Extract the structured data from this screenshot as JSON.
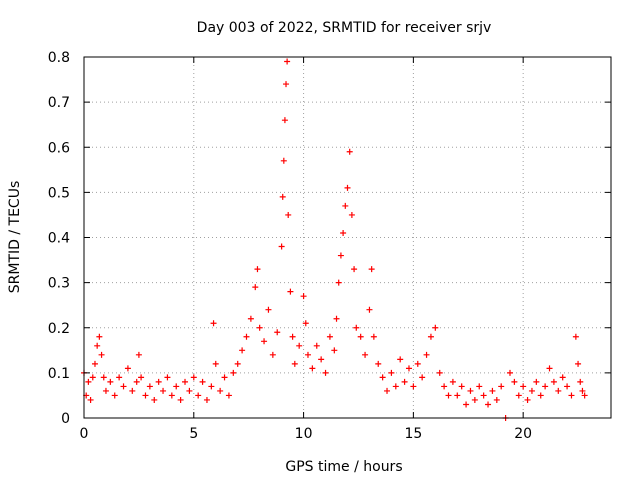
{
  "chart_data": {
    "type": "scatter",
    "title": "Day 003 of 2022, SRMTID for receiver srjv",
    "xlabel": "GPS time / hours",
    "ylabel": "SRMTID / TECUs",
    "xlim": [
      0,
      24
    ],
    "ylim": [
      0,
      0.8
    ],
    "x_ticks": [
      0,
      5,
      10,
      15,
      20
    ],
    "x_tick_labels": [
      "0",
      "5",
      "10",
      "15",
      "20"
    ],
    "y_ticks": [
      0,
      0.1,
      0.2,
      0.3,
      0.4,
      0.5,
      0.6,
      0.7,
      0.8
    ],
    "y_tick_labels": [
      "0",
      "0.1",
      "0.2",
      "0.3",
      "0.4",
      "0.5",
      "0.6",
      "0.7",
      "0.8"
    ],
    "grid": true,
    "marker": "+",
    "series": [
      {
        "name": "srjv",
        "color": "#ff0000",
        "points": [
          [
            0.0,
            0.1
          ],
          [
            0.1,
            0.05
          ],
          [
            0.2,
            0.08
          ],
          [
            0.3,
            0.04
          ],
          [
            0.4,
            0.09
          ],
          [
            0.5,
            0.12
          ],
          [
            0.6,
            0.16
          ],
          [
            0.7,
            0.18
          ],
          [
            0.8,
            0.14
          ],
          [
            0.9,
            0.09
          ],
          [
            1.0,
            0.06
          ],
          [
            1.2,
            0.08
          ],
          [
            1.4,
            0.05
          ],
          [
            1.6,
            0.09
          ],
          [
            1.8,
            0.07
          ],
          [
            2.0,
            0.11
          ],
          [
            2.2,
            0.06
          ],
          [
            2.4,
            0.08
          ],
          [
            2.5,
            0.14
          ],
          [
            2.6,
            0.09
          ],
          [
            2.8,
            0.05
          ],
          [
            3.0,
            0.07
          ],
          [
            3.2,
            0.04
          ],
          [
            3.4,
            0.08
          ],
          [
            3.6,
            0.06
          ],
          [
            3.8,
            0.09
          ],
          [
            4.0,
            0.05
          ],
          [
            4.2,
            0.07
          ],
          [
            4.4,
            0.04
          ],
          [
            4.6,
            0.08
          ],
          [
            4.8,
            0.06
          ],
          [
            5.0,
            0.09
          ],
          [
            5.2,
            0.05
          ],
          [
            5.4,
            0.08
          ],
          [
            5.6,
            0.04
          ],
          [
            5.8,
            0.07
          ],
          [
            5.9,
            0.21
          ],
          [
            6.0,
            0.12
          ],
          [
            6.2,
            0.06
          ],
          [
            6.4,
            0.09
          ],
          [
            6.6,
            0.05
          ],
          [
            6.8,
            0.1
          ],
          [
            7.0,
            0.12
          ],
          [
            7.2,
            0.15
          ],
          [
            7.4,
            0.18
          ],
          [
            7.6,
            0.22
          ],
          [
            7.8,
            0.29
          ],
          [
            7.9,
            0.33
          ],
          [
            8.0,
            0.2
          ],
          [
            8.2,
            0.17
          ],
          [
            8.4,
            0.24
          ],
          [
            8.6,
            0.14
          ],
          [
            8.8,
            0.19
          ],
          [
            9.0,
            0.38
          ],
          [
            9.05,
            0.49
          ],
          [
            9.1,
            0.57
          ],
          [
            9.15,
            0.66
          ],
          [
            9.2,
            0.74
          ],
          [
            9.25,
            0.79
          ],
          [
            9.3,
            0.45
          ],
          [
            9.4,
            0.28
          ],
          [
            9.5,
            0.18
          ],
          [
            9.6,
            0.12
          ],
          [
            9.8,
            0.16
          ],
          [
            10.0,
            0.27
          ],
          [
            10.1,
            0.21
          ],
          [
            10.2,
            0.14
          ],
          [
            10.4,
            0.11
          ],
          [
            10.6,
            0.16
          ],
          [
            10.8,
            0.13
          ],
          [
            11.0,
            0.1
          ],
          [
            11.2,
            0.18
          ],
          [
            11.4,
            0.15
          ],
          [
            11.5,
            0.22
          ],
          [
            11.6,
            0.3
          ],
          [
            11.7,
            0.36
          ],
          [
            11.8,
            0.41
          ],
          [
            11.9,
            0.47
          ],
          [
            12.0,
            0.51
          ],
          [
            12.1,
            0.59
          ],
          [
            12.2,
            0.45
          ],
          [
            12.3,
            0.33
          ],
          [
            12.4,
            0.2
          ],
          [
            12.6,
            0.18
          ],
          [
            12.8,
            0.14
          ],
          [
            13.0,
            0.24
          ],
          [
            13.1,
            0.33
          ],
          [
            13.2,
            0.18
          ],
          [
            13.4,
            0.12
          ],
          [
            13.6,
            0.09
          ],
          [
            13.8,
            0.06
          ],
          [
            14.0,
            0.1
          ],
          [
            14.2,
            0.07
          ],
          [
            14.4,
            0.13
          ],
          [
            14.6,
            0.08
          ],
          [
            14.8,
            0.11
          ],
          [
            15.0,
            0.07
          ],
          [
            15.2,
            0.12
          ],
          [
            15.4,
            0.09
          ],
          [
            15.6,
            0.14
          ],
          [
            15.8,
            0.18
          ],
          [
            16.0,
            0.2
          ],
          [
            16.2,
            0.1
          ],
          [
            16.4,
            0.07
          ],
          [
            16.6,
            0.05
          ],
          [
            16.8,
            0.08
          ],
          [
            17.0,
            0.05
          ],
          [
            17.2,
            0.07
          ],
          [
            17.4,
            0.03
          ],
          [
            17.6,
            0.06
          ],
          [
            17.8,
            0.04
          ],
          [
            18.0,
            0.07
          ],
          [
            18.2,
            0.05
          ],
          [
            18.4,
            0.03
          ],
          [
            18.6,
            0.06
          ],
          [
            18.8,
            0.04
          ],
          [
            19.0,
            0.07
          ],
          [
            19.2,
            0.0
          ],
          [
            19.4,
            0.1
          ],
          [
            19.6,
            0.08
          ],
          [
            19.8,
            0.05
          ],
          [
            20.0,
            0.07
          ],
          [
            20.2,
            0.04
          ],
          [
            20.4,
            0.06
          ],
          [
            20.6,
            0.08
          ],
          [
            20.8,
            0.05
          ],
          [
            21.0,
            0.07
          ],
          [
            21.2,
            0.11
          ],
          [
            21.4,
            0.08
          ],
          [
            21.6,
            0.06
          ],
          [
            21.8,
            0.09
          ],
          [
            22.0,
            0.07
          ],
          [
            22.2,
            0.05
          ],
          [
            22.4,
            0.18
          ],
          [
            22.5,
            0.12
          ],
          [
            22.6,
            0.08
          ],
          [
            22.7,
            0.06
          ],
          [
            22.8,
            0.05
          ]
        ]
      }
    ]
  }
}
